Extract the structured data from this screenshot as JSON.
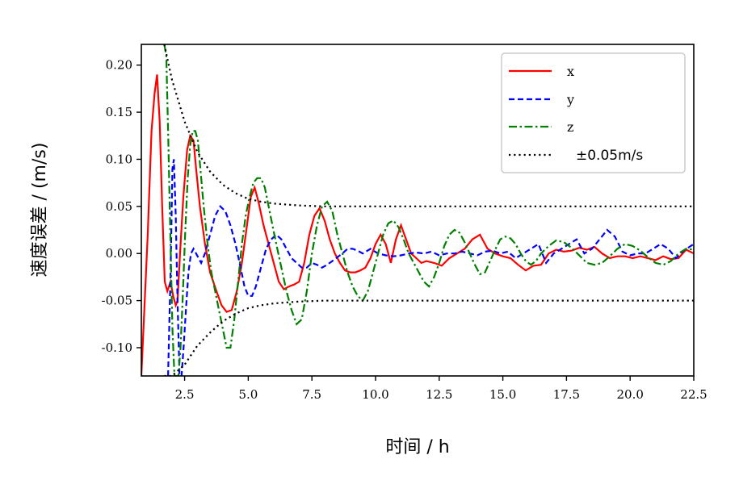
{
  "chart_data": {
    "type": "line",
    "xlabel": "时间 / h",
    "ylabel": "速度误差 / (m/s)",
    "xlim": [
      0.8,
      22.5
    ],
    "ylim": [
      -0.13,
      0.222
    ],
    "xticks": [
      2.5,
      5.0,
      7.5,
      10.0,
      12.5,
      15.0,
      17.5,
      20.0,
      22.5
    ],
    "xtick_labels": [
      "2.5",
      "5.0",
      "7.5",
      "10.0",
      "12.5",
      "15.0",
      "17.5",
      "20.0",
      "22.5"
    ],
    "yticks": [
      0.2,
      0.15,
      0.1,
      0.05,
      0.0,
      -0.05,
      -0.1
    ],
    "ytick_labels": [
      "0.20",
      "0.15",
      "0.10",
      "0.05",
      "0.00",
      "-0.05",
      "-0.10"
    ],
    "grid": false,
    "legend_position": "top-right",
    "series": [
      {
        "name": "x",
        "color": "#ff0000",
        "style": "solid",
        "x": [
          0.8,
          1.05,
          1.2,
          1.32,
          1.42,
          1.52,
          1.62,
          1.72,
          1.82,
          1.95,
          2.05,
          2.15,
          2.22,
          2.32,
          2.45,
          2.6,
          2.72,
          2.85,
          2.95,
          3.1,
          3.3,
          3.5,
          3.75,
          3.95,
          4.15,
          4.35,
          4.55,
          4.75,
          4.95,
          5.1,
          5.25,
          5.4,
          5.6,
          5.8,
          6.0,
          6.2,
          6.4,
          6.6,
          6.8,
          7.0,
          7.2,
          7.4,
          7.6,
          7.8,
          8.0,
          8.2,
          8.4,
          8.6,
          8.8,
          9.0,
          9.2,
          9.4,
          9.6,
          9.8,
          10.0,
          10.2,
          10.4,
          10.6,
          10.8,
          11.0,
          11.2,
          11.4,
          11.6,
          11.8,
          12.0,
          12.3,
          12.6,
          12.9,
          13.2,
          13.5,
          13.8,
          14.1,
          14.4,
          14.7,
          15.0,
          15.3,
          15.6,
          15.9,
          16.2,
          16.5,
          16.8,
          17.1,
          17.4,
          17.7,
          18.0,
          18.3,
          18.6,
          18.9,
          19.2,
          19.5,
          19.8,
          20.1,
          20.4,
          20.7,
          21.0,
          21.3,
          21.6,
          21.9,
          22.2,
          22.5
        ],
        "y": [
          -0.13,
          0.02,
          0.13,
          0.17,
          0.19,
          0.14,
          0.05,
          -0.03,
          -0.04,
          -0.03,
          -0.045,
          -0.055,
          -0.05,
          0.0,
          0.06,
          0.11,
          0.125,
          0.12,
          0.09,
          0.05,
          0.01,
          -0.02,
          -0.04,
          -0.055,
          -0.062,
          -0.06,
          -0.04,
          -0.01,
          0.03,
          0.06,
          0.07,
          0.055,
          0.03,
          0.01,
          -0.01,
          -0.03,
          -0.038,
          -0.035,
          -0.033,
          -0.03,
          -0.01,
          0.02,
          0.04,
          0.048,
          0.035,
          0.015,
          0.0,
          -0.01,
          -0.018,
          -0.02,
          -0.02,
          -0.018,
          -0.015,
          -0.005,
          0.01,
          0.02,
          0.01,
          -0.01,
          0.015,
          0.03,
          0.015,
          0.0,
          -0.005,
          -0.01,
          -0.008,
          -0.01,
          -0.013,
          -0.005,
          0.0,
          0.005,
          0.015,
          0.02,
          0.005,
          0.0,
          -0.003,
          -0.005,
          -0.012,
          -0.018,
          -0.013,
          -0.012,
          0.0,
          0.004,
          0.002,
          0.003,
          0.006,
          0.004,
          0.007,
          0.0,
          -0.005,
          -0.003,
          -0.003,
          -0.005,
          -0.003,
          -0.005,
          -0.007,
          -0.003,
          -0.006,
          -0.005,
          0.004,
          0.0
        ]
      },
      {
        "name": "y",
        "color": "#0000ff",
        "style": "dashed",
        "x": [
          1.85,
          1.95,
          2.02,
          2.08,
          2.15,
          2.22,
          2.3,
          2.38,
          2.46,
          2.55,
          2.65,
          2.75,
          2.85,
          2.95,
          3.05,
          3.15,
          3.3,
          3.5,
          3.7,
          3.9,
          4.1,
          4.3,
          4.5,
          4.7,
          4.85,
          5.0,
          5.15,
          5.3,
          5.5,
          5.7,
          5.9,
          6.1,
          6.3,
          6.5,
          6.7,
          6.9,
          7.1,
          7.3,
          7.5,
          7.7,
          7.9,
          8.1,
          8.3,
          8.5,
          8.7,
          8.9,
          9.1,
          9.3,
          9.5,
          9.8,
          10.1,
          10.4,
          10.7,
          11.0,
          11.3,
          11.6,
          11.9,
          12.2,
          12.5,
          12.8,
          13.1,
          13.4,
          13.7,
          14.0,
          14.3,
          14.6,
          14.9,
          15.2,
          15.5,
          15.8,
          16.1,
          16.4,
          16.7,
          17.0,
          17.3,
          17.6,
          17.9,
          18.2,
          18.5,
          18.8,
          19.1,
          19.4,
          19.7,
          20.0,
          20.3,
          20.6,
          20.9,
          21.2,
          21.5,
          21.8,
          22.1,
          22.5
        ],
        "y": [
          -0.13,
          -0.02,
          0.09,
          0.1,
          0.04,
          -0.05,
          -0.13,
          -0.13,
          -0.1,
          -0.06,
          -0.02,
          0.0,
          0.005,
          0.0,
          -0.005,
          -0.01,
          0.0,
          0.02,
          0.04,
          0.05,
          0.045,
          0.03,
          0.01,
          -0.015,
          -0.035,
          -0.045,
          -0.045,
          -0.035,
          -0.015,
          0.005,
          0.015,
          0.02,
          0.015,
          0.005,
          -0.005,
          -0.01,
          -0.015,
          -0.015,
          -0.01,
          -0.012,
          -0.015,
          -0.012,
          -0.008,
          -0.004,
          0.0,
          0.005,
          0.005,
          0.003,
          0.0,
          0.005,
          0.0,
          -0.002,
          -0.003,
          -0.002,
          0.0,
          0.001,
          0.0,
          0.002,
          -0.002,
          0.0,
          0.0,
          0.002,
          0.0,
          -0.002,
          0.002,
          0.003,
          0.0,
          0.002,
          -0.005,
          0.0,
          0.005,
          0.01,
          -0.01,
          0.0,
          0.005,
          0.01,
          0.015,
          0.0,
          0.005,
          0.015,
          0.025,
          0.018,
          0.002,
          -0.002,
          0.0,
          0.0,
          0.005,
          0.01,
          0.005,
          -0.005,
          0.003,
          0.01
        ]
      },
      {
        "name": "z",
        "color": "#008000",
        "style": "dashdot",
        "x": [
          1.7,
          1.78,
          1.86,
          1.94,
          2.02,
          2.1,
          2.18,
          2.26,
          2.34,
          2.42,
          2.52,
          2.62,
          2.72,
          2.82,
          2.92,
          3.02,
          3.12,
          3.25,
          3.4,
          3.55,
          3.7,
          3.85,
          4.0,
          4.15,
          4.3,
          4.45,
          4.6,
          4.75,
          4.9,
          5.05,
          5.2,
          5.35,
          5.5,
          5.65,
          5.8,
          5.95,
          6.1,
          6.3,
          6.5,
          6.7,
          6.9,
          7.1,
          7.3,
          7.5,
          7.7,
          7.9,
          8.1,
          8.3,
          8.5,
          8.7,
          8.9,
          9.1,
          9.3,
          9.5,
          9.7,
          9.9,
          10.1,
          10.3,
          10.5,
          10.7,
          10.9,
          11.1,
          11.3,
          11.5,
          11.7,
          11.9,
          12.1,
          12.3,
          12.5,
          12.7,
          12.9,
          13.1,
          13.3,
          13.5,
          13.7,
          13.9,
          14.1,
          14.3,
          14.5,
          14.7,
          14.9,
          15.1,
          15.3,
          15.5,
          15.7,
          15.9,
          16.1,
          16.3,
          16.5,
          16.8,
          17.1,
          17.4,
          17.7,
          18.0,
          18.3,
          18.6,
          18.9,
          19.2,
          19.5,
          19.8,
          20.1,
          20.4,
          20.7,
          21.0,
          21.3,
          21.6,
          21.9,
          22.2,
          22.5
        ],
        "y": [
          0.222,
          0.21,
          0.12,
          0.02,
          -0.08,
          -0.13,
          -0.13,
          -0.13,
          -0.1,
          -0.05,
          0.02,
          0.08,
          0.115,
          0.13,
          0.13,
          0.12,
          0.09,
          0.05,
          0.01,
          -0.02,
          -0.04,
          -0.06,
          -0.08,
          -0.1,
          -0.1,
          -0.07,
          -0.03,
          0.01,
          0.04,
          0.06,
          0.075,
          0.08,
          0.08,
          0.07,
          0.05,
          0.03,
          0.01,
          -0.015,
          -0.04,
          -0.06,
          -0.075,
          -0.07,
          -0.04,
          0.0,
          0.03,
          0.05,
          0.055,
          0.045,
          0.02,
          0.0,
          -0.02,
          -0.035,
          -0.045,
          -0.05,
          -0.04,
          -0.02,
          0.0,
          0.02,
          0.032,
          0.035,
          0.028,
          0.015,
          0.0,
          -0.01,
          -0.02,
          -0.03,
          -0.035,
          -0.025,
          -0.01,
          0.008,
          0.02,
          0.025,
          0.022,
          0.012,
          0.0,
          -0.012,
          -0.022,
          -0.02,
          -0.008,
          0.004,
          0.015,
          0.018,
          0.016,
          0.01,
          0.0,
          -0.008,
          -0.012,
          -0.008,
          0.0,
          0.008,
          0.014,
          0.012,
          0.006,
          -0.002,
          -0.01,
          -0.012,
          -0.01,
          -0.003,
          0.005,
          0.01,
          0.008,
          0.003,
          -0.004,
          -0.01,
          -0.012,
          -0.008,
          0.0,
          0.005,
          0.004
        ]
      },
      {
        "name": "±0.05m/s",
        "color": "#000000",
        "style": "dotted",
        "bound_upper": {
          "x": [
            1.7,
            2.0,
            2.5,
            3.0,
            3.5,
            4.0,
            4.5,
            5.0,
            5.5,
            6.0,
            6.5,
            7.0,
            8.0,
            10.0,
            12.5,
            15.0,
            17.5,
            20.0,
            22.5
          ],
          "y": [
            0.222,
            0.185,
            0.14,
            0.108,
            0.087,
            0.073,
            0.064,
            0.058,
            0.055,
            0.053,
            0.052,
            0.051,
            0.05,
            0.05,
            0.05,
            0.05,
            0.05,
            0.05,
            0.05
          ]
        },
        "bound_lower": {
          "x": [
            1.7,
            2.0,
            2.5,
            3.0,
            3.5,
            4.0,
            4.5,
            5.0,
            5.5,
            6.0,
            6.5,
            7.0,
            8.0,
            10.0,
            12.5,
            15.0,
            17.5,
            20.0,
            22.5
          ],
          "y": [
            -0.13,
            -0.13,
            -0.118,
            -0.098,
            -0.084,
            -0.072,
            -0.064,
            -0.058,
            -0.055,
            -0.053,
            -0.052,
            -0.051,
            -0.05,
            -0.05,
            -0.05,
            -0.05,
            -0.05,
            -0.05,
            -0.05
          ]
        }
      }
    ]
  }
}
